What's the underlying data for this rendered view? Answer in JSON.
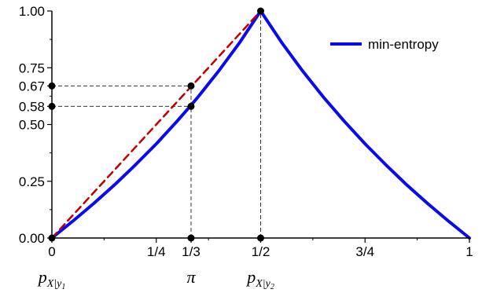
{
  "chart_data": {
    "type": "line",
    "title": "",
    "xlabel": "",
    "ylabel": "",
    "xlim": [
      0,
      1
    ],
    "ylim": [
      0,
      1
    ],
    "grid": false,
    "legend_position": "top-right",
    "x_ticks": [
      {
        "value": 0,
        "label": "0"
      },
      {
        "value": 0.25,
        "label": "1/4"
      },
      {
        "value": 0.3333,
        "label": "1/3"
      },
      {
        "value": 0.5,
        "label": "1/2"
      },
      {
        "value": 0.75,
        "label": "3/4"
      },
      {
        "value": 1,
        "label": "1"
      }
    ],
    "y_ticks": [
      {
        "value": 0,
        "label": "0.00"
      },
      {
        "value": 0.25,
        "label": "0.25"
      },
      {
        "value": 0.5,
        "label": "0.50"
      },
      {
        "value": 0.58,
        "label": "0.58"
      },
      {
        "value": 0.67,
        "label": "0.67"
      },
      {
        "value": 0.75,
        "label": "0.75"
      },
      {
        "value": 1,
        "label": "1.00"
      }
    ],
    "series": [
      {
        "name": "min-entropy",
        "color": "#0a0aee",
        "style": "solid",
        "x": [
          0,
          0.05,
          0.1,
          0.15,
          0.2,
          0.25,
          0.3,
          0.3333,
          0.35,
          0.4,
          0.45,
          0.5,
          0.55,
          0.6,
          0.65,
          0.7,
          0.75,
          0.8,
          0.85,
          0.9,
          0.95,
          1
        ],
        "y": [
          0,
          0.074,
          0.152,
          0.234,
          0.322,
          0.415,
          0.515,
          0.585,
          0.621,
          0.737,
          0.862,
          1,
          0.862,
          0.737,
          0.621,
          0.515,
          0.415,
          0.322,
          0.234,
          0.152,
          0.074,
          0
        ]
      },
      {
        "color": "#c00000",
        "style": "dashed",
        "x": [
          0,
          0.5
        ],
        "y": [
          0,
          1
        ]
      }
    ],
    "guide_points": [
      {
        "x": 0,
        "y": 0
      },
      {
        "x": 0.3333,
        "y": 0
      },
      {
        "x": 0.5,
        "y": 0
      },
      {
        "x": 0,
        "y": 0.58
      },
      {
        "x": 0,
        "y": 0.67
      },
      {
        "x": 0.3333,
        "y": 0.58
      },
      {
        "x": 0.3333,
        "y": 0.67
      },
      {
        "x": 0.5,
        "y": 1
      }
    ],
    "guide_lines": [
      {
        "from": [
          0,
          0.67
        ],
        "to": [
          0.3333,
          0.67
        ]
      },
      {
        "from": [
          0,
          0.58
        ],
        "to": [
          0.3333,
          0.58
        ]
      },
      {
        "from": [
          0.3333,
          0
        ],
        "to": [
          0.3333,
          0.67
        ]
      },
      {
        "from": [
          0.5,
          0
        ],
        "to": [
          0.5,
          1
        ]
      }
    ],
    "x_annotations": [
      {
        "x": 0,
        "main": "p",
        "subscript": "X|y",
        "subsub": "1"
      },
      {
        "x": 0.3333,
        "main": "π"
      },
      {
        "x": 0.5,
        "main": "p",
        "subscript": "X|y",
        "subsub": "2"
      }
    ]
  }
}
